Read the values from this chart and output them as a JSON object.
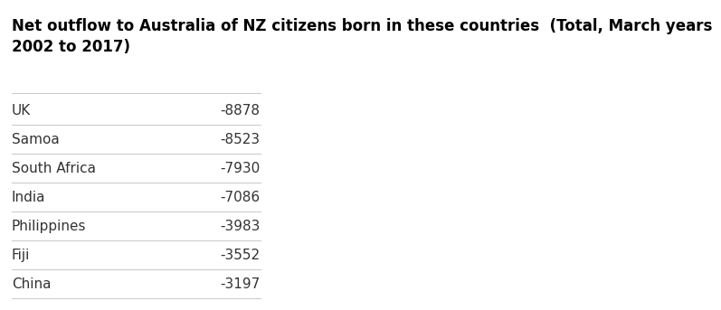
{
  "title": "Net outflow to Australia of NZ citizens born in these countries  (Total, March years\n2002 to 2017)",
  "countries": [
    "UK",
    "Samoa",
    "South Africa",
    "India",
    "Philippines",
    "Fiji",
    "China"
  ],
  "values": [
    -8878,
    -8523,
    -7930,
    -7086,
    -3983,
    -3552,
    -3197
  ],
  "bg_color": "#ffffff",
  "title_color": "#000000",
  "row_text_color": "#333333",
  "value_color": "#333333",
  "divider_color": "#cccccc",
  "title_fontsize": 12,
  "row_fontsize": 11
}
